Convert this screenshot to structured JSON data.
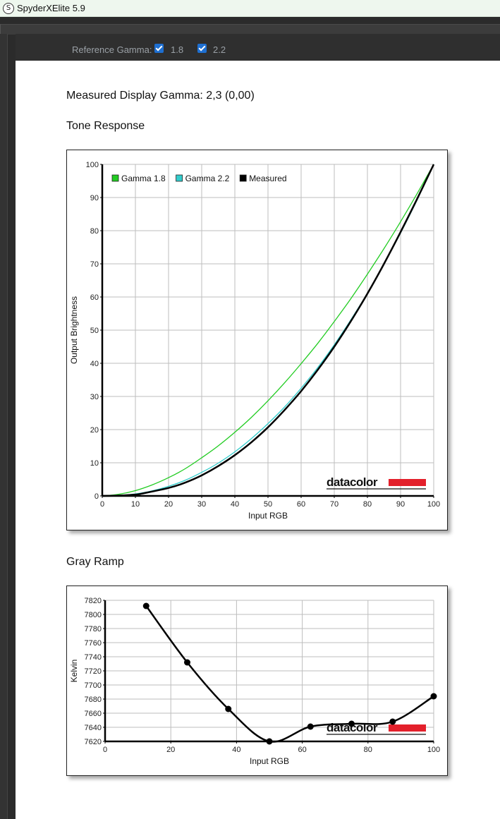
{
  "window": {
    "title": "SpyderXElite 5.9",
    "icon": "S"
  },
  "toolbar": {
    "reference_label": "Reference Gamma:",
    "options": [
      {
        "label": "1.8",
        "checked": true
      },
      {
        "label": "2.2",
        "checked": true
      }
    ]
  },
  "report": {
    "gamma_heading": "Measured Display Gamma: 2,3 (0,00)",
    "tone_heading": "Tone Response",
    "gray_heading": "Gray Ramp"
  },
  "logo": {
    "text": "datacolor",
    "bar_color": "#e3202b"
  },
  "chart_data": [
    {
      "type": "line",
      "title": "",
      "xlabel": "Input RGB",
      "ylabel": "Output Brightness",
      "xlim": [
        0,
        100
      ],
      "ylim": [
        0,
        100
      ],
      "xticks": [
        0,
        10,
        20,
        30,
        40,
        50,
        60,
        70,
        80,
        90,
        100
      ],
      "yticks": [
        0,
        10,
        20,
        30,
        40,
        50,
        60,
        70,
        80,
        90,
        100
      ],
      "grid": true,
      "legend": "top-left",
      "series": [
        {
          "name": "Gamma 1.8",
          "color": "#22cc22",
          "x": [
            0,
            5,
            10,
            15,
            20,
            25,
            30,
            35,
            40,
            45,
            50,
            55,
            60,
            65,
            70,
            75,
            80,
            85,
            90,
            95,
            100
          ],
          "y": [
            0,
            0.5,
            1.6,
            3.3,
            5.5,
            8.2,
            11.5,
            15.1,
            19.2,
            23.7,
            28.7,
            34.1,
            39.9,
            46.0,
            52.6,
            59.5,
            66.9,
            74.6,
            82.7,
            91.2,
            100
          ]
        },
        {
          "name": "Gamma 2.2",
          "color": "#33cccc",
          "x": [
            0,
            5,
            10,
            15,
            20,
            25,
            30,
            35,
            40,
            45,
            50,
            55,
            60,
            65,
            70,
            75,
            80,
            85,
            90,
            95,
            100
          ],
          "y": [
            0,
            0.1,
            0.6,
            1.5,
            2.9,
            4.7,
            7.1,
            9.9,
            13.3,
            17.3,
            21.8,
            26.8,
            32.5,
            38.7,
            45.6,
            53.1,
            61.2,
            70.0,
            79.3,
            89.3,
            100
          ]
        },
        {
          "name": "Measured",
          "color": "#000000",
          "x": [
            0,
            5,
            10,
            12,
            20,
            25,
            30,
            35,
            40,
            45,
            50,
            55,
            60,
            65,
            70,
            75,
            80,
            85,
            90,
            95,
            100
          ],
          "y": [
            0,
            0.1,
            0.4,
            0.7,
            2.4,
            4.0,
            6.2,
            9.0,
            12.3,
            16.2,
            20.7,
            25.9,
            31.6,
            38.0,
            45.0,
            52.7,
            61.0,
            70.0,
            79.6,
            89.6,
            100
          ]
        }
      ]
    },
    {
      "type": "line",
      "title": "",
      "xlabel": "Input RGB",
      "ylabel": "Kelvin",
      "xlim": [
        0,
        100
      ],
      "ylim": [
        7620,
        7820
      ],
      "xticks": [
        0,
        20,
        40,
        60,
        80,
        100
      ],
      "yticks": [
        7620,
        7640,
        7660,
        7680,
        7700,
        7720,
        7740,
        7760,
        7780,
        7800,
        7820
      ],
      "grid": true,
      "series": [
        {
          "name": "",
          "color": "#000000",
          "x": [
            12.5,
            25,
            37.5,
            50,
            62.5,
            75,
            87.5,
            100
          ],
          "y": [
            7812,
            7732,
            7666,
            7620,
            7641,
            7645,
            7648,
            7684
          ]
        }
      ]
    }
  ]
}
